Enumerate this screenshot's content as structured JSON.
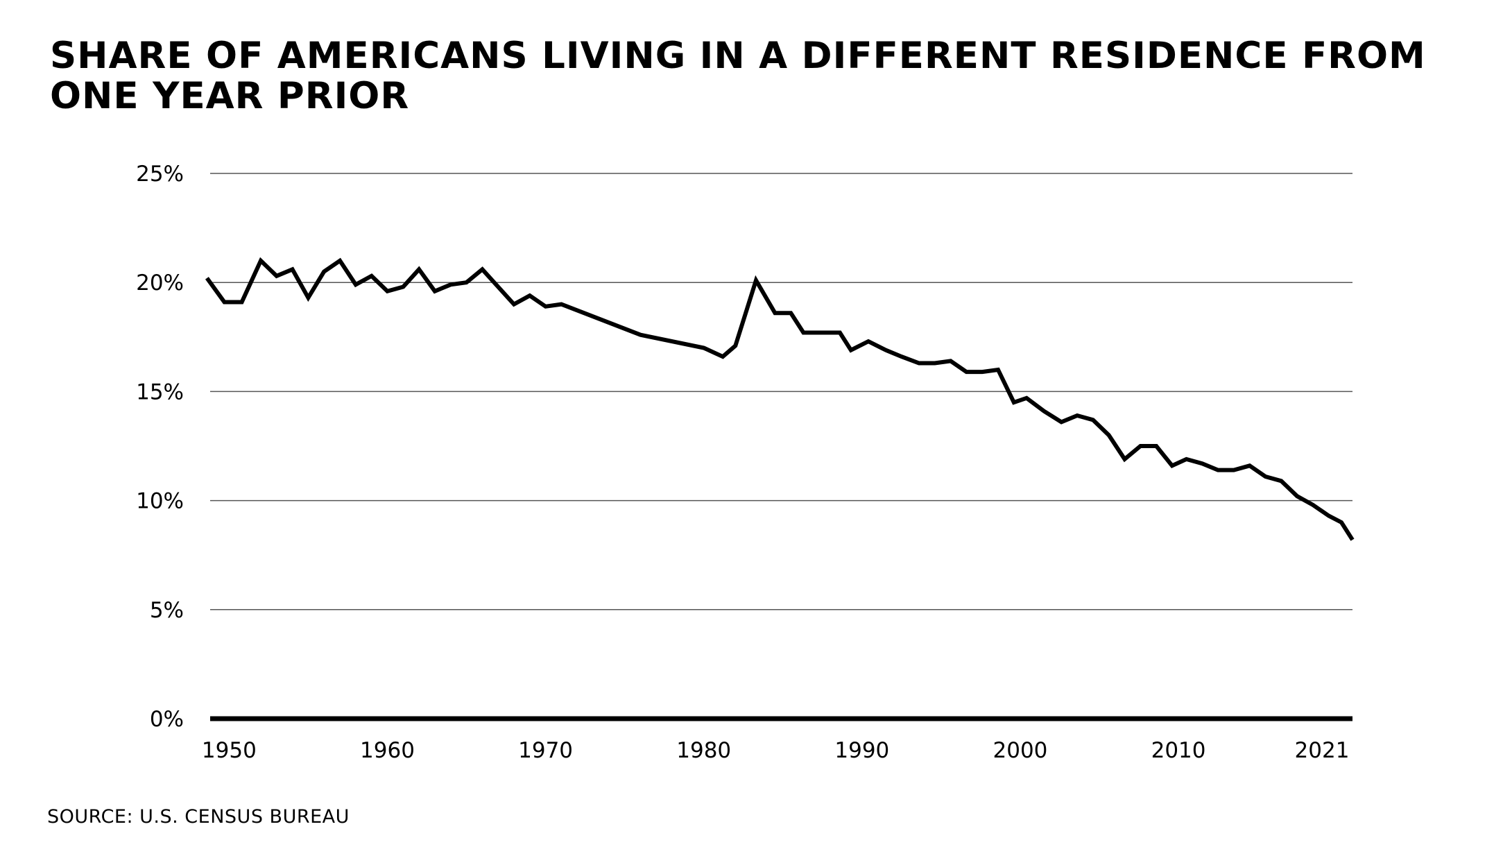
{
  "title": "SHARE OF AMERICANS LIVING IN A DIFFERENT RESIDENCE FROM ONE YEAR PRIOR",
  "source": "SOURCE: U.S. CENSUS BUREAU",
  "colors": {
    "line": "#000000",
    "grid": "#555555",
    "baseline": "#000000",
    "background": "#ffffff"
  },
  "chart_data": {
    "type": "line",
    "title": "SHARE OF AMERICANS LIVING IN A DIFFERENT RESIDENCE FROM ONE YEAR PRIOR",
    "xlabel": "",
    "ylabel": "",
    "xlim": [
      1948.8,
      2021
    ],
    "ylim": [
      0,
      25
    ],
    "grid": true,
    "legend": "none",
    "x_ticks": [
      {
        "value": 1950,
        "label": "1950"
      },
      {
        "value": 1960,
        "label": "1960"
      },
      {
        "value": 1970,
        "label": "1970"
      },
      {
        "value": 1980,
        "label": "1980"
      },
      {
        "value": 1990,
        "label": "1990"
      },
      {
        "value": 2000,
        "label": "2000"
      },
      {
        "value": 2010,
        "label": "2010"
      },
      {
        "value": 2021,
        "label": "2021"
      }
    ],
    "y_ticks": [
      {
        "value": 0,
        "label": "0%"
      },
      {
        "value": 5,
        "label": "5%"
      },
      {
        "value": 10,
        "label": "10%"
      },
      {
        "value": 15,
        "label": "15%"
      },
      {
        "value": 20,
        "label": "20%"
      },
      {
        "value": 25,
        "label": "25%"
      }
    ],
    "series": [
      {
        "x": [
          1948.6,
          1949.7,
          1950.8,
          1952,
          1953,
          1954,
          1955,
          1956,
          1957,
          1958,
          1959,
          1960,
          1961,
          1962,
          1963,
          1964,
          1965,
          1966,
          1967,
          1968,
          1969,
          1970,
          1971,
          1976,
          1980,
          1981.2,
          1982,
          1983.3,
          1984.5,
          1985.5,
          1986.3,
          1987.5,
          1988.6,
          1989.3,
          1990.4,
          1991.5,
          1992.5,
          1993.6,
          1994.6,
          1995.6,
          1996.6,
          1997.6,
          1998.6,
          1999.6,
          2000.4,
          2001.5,
          2002.6,
          2003.6,
          2004.6,
          2005.6,
          2006.6,
          2007.6,
          2008.6,
          2009.6,
          2010.5,
          2011.5,
          2012.5,
          2013.5,
          2014.5,
          2015.5,
          2016.5,
          2017.5,
          2018.5,
          2019.5,
          2020.3,
          2021
        ],
        "y": [
          20.2,
          19.1,
          19.1,
          21.0,
          20.3,
          20.6,
          19.3,
          20.5,
          21.0,
          19.9,
          20.3,
          19.6,
          19.8,
          20.6,
          19.6,
          19.9,
          20.0,
          20.6,
          19.8,
          19.0,
          19.4,
          18.9,
          19.0,
          17.6,
          17.0,
          16.6,
          17.1,
          20.1,
          18.6,
          18.6,
          17.7,
          17.7,
          17.7,
          16.9,
          17.3,
          16.9,
          16.6,
          16.3,
          16.3,
          16.4,
          15.9,
          15.9,
          16.0,
          14.5,
          14.7,
          14.1,
          13.6,
          13.9,
          13.7,
          13.0,
          11.9,
          12.5,
          12.5,
          11.6,
          11.9,
          11.7,
          11.4,
          11.4,
          11.6,
          11.1,
          10.9,
          10.2,
          9.8,
          9.3,
          9.0,
          8.2
        ]
      }
    ]
  }
}
